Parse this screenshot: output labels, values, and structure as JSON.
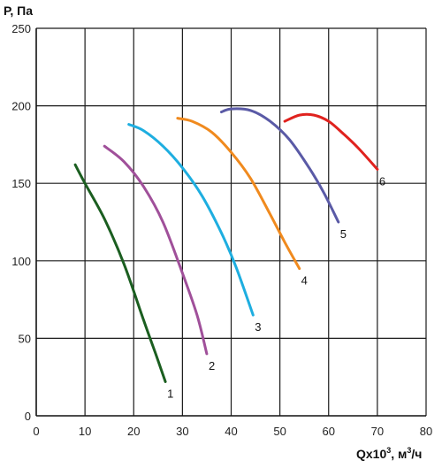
{
  "chart_data": {
    "type": "line",
    "title": "",
    "ylabel": "Р, Па",
    "xlabel": {
      "base": "Qx10",
      "exp": "3",
      "unit_pre": ", м",
      "unit_exp": "3",
      "unit_post": "/ч"
    },
    "xlim": [
      0,
      80
    ],
    "ylim": [
      0,
      250
    ],
    "x_ticks": [
      "0",
      "10",
      "20",
      "30",
      "40",
      "50",
      "60",
      "70",
      "80"
    ],
    "y_ticks": [
      "0",
      "50",
      "100",
      "150",
      "200",
      "250"
    ],
    "grid": true,
    "legend": "labels at curve ends",
    "series": [
      {
        "label": "1",
        "color": "#1b5e20",
        "x": [
          8,
          10,
          14,
          18,
          22,
          24.5,
          26.5
        ],
        "y": [
          162,
          150,
          127,
          98,
          62,
          40,
          22
        ]
      },
      {
        "label": "2",
        "color": "#a0509a",
        "x": [
          14,
          18,
          22,
          26,
          30,
          33,
          35
        ],
        "y": [
          174,
          164,
          148,
          125,
          92,
          65,
          40
        ]
      },
      {
        "label": "3",
        "color": "#1eaee0",
        "x": [
          19,
          22,
          26,
          30,
          34,
          38,
          41,
          44.5
        ],
        "y": [
          188,
          184,
          174,
          160,
          142,
          118,
          96,
          65
        ]
      },
      {
        "label": "4",
        "color": "#f08a1e",
        "x": [
          29,
          32,
          36,
          40,
          44,
          48,
          51,
          54
        ],
        "y": [
          192,
          190,
          183,
          170,
          153,
          130,
          112,
          95
        ]
      },
      {
        "label": "5",
        "color": "#5a5aa6",
        "x": [
          38,
          40,
          44,
          48,
          52,
          56,
          59,
          62
        ],
        "y": [
          196,
          198,
          197,
          190,
          178,
          160,
          144,
          125
        ]
      },
      {
        "label": "6",
        "color": "#e0221e",
        "x": [
          51,
          54,
          57,
          60,
          63,
          66,
          70
        ],
        "y": [
          190,
          194,
          194,
          190,
          182,
          173,
          159
        ]
      }
    ]
  }
}
